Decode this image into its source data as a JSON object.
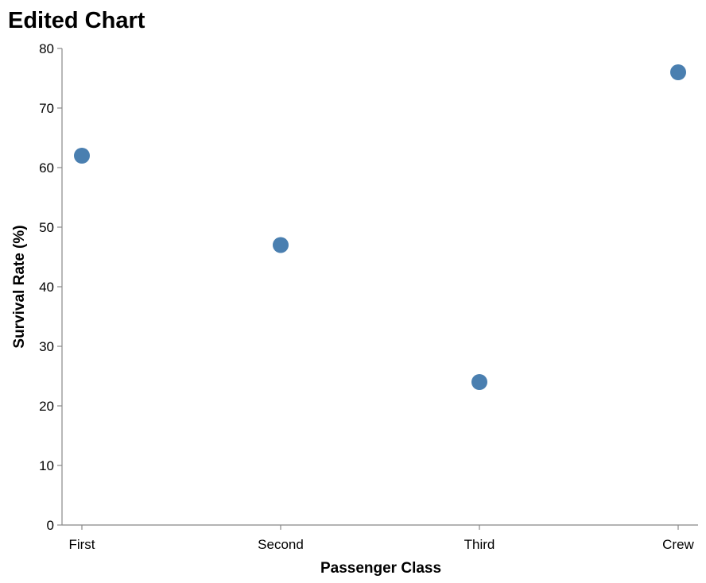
{
  "chart_data": {
    "type": "scatter",
    "title": "Edited Chart",
    "xlabel": "Passenger Class",
    "ylabel": "Survival Rate (%)",
    "categories": [
      "First",
      "Second",
      "Third",
      "Crew"
    ],
    "values": [
      62,
      47,
      24,
      76
    ],
    "ylim": [
      0,
      80
    ],
    "yticks": [
      "0",
      "10",
      "20",
      "30",
      "40",
      "50",
      "60",
      "70",
      "80"
    ],
    "grid": false,
    "point_color": "#4a7fb0"
  }
}
